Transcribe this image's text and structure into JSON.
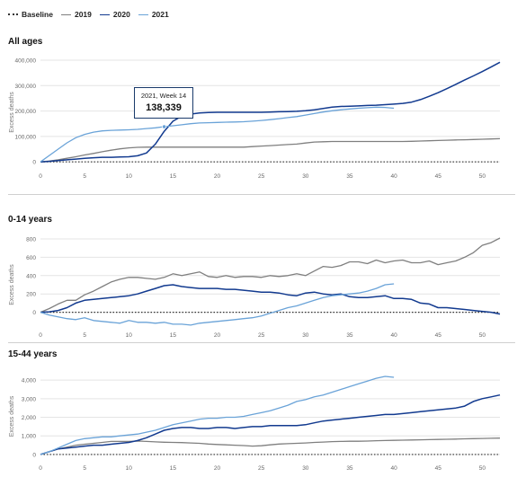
{
  "legend": {
    "items": [
      {
        "label": "Baseline",
        "color": "#333333",
        "style": "dotted"
      },
      {
        "label": "2019",
        "color": "#7f7f7f",
        "style": "solid"
      },
      {
        "label": "2020",
        "color": "#123a8f",
        "style": "solid"
      },
      {
        "label": "2021",
        "color": "#6aa3d8",
        "style": "solid"
      }
    ]
  },
  "colors": {
    "baseline": "#333333",
    "y2019": "#7f7f7f",
    "y2020": "#123a8f",
    "y2021": "#6aa3d8",
    "grid": "#e4e4e4"
  },
  "tooltip": {
    "title": "2021, Week 14",
    "value": "138,339"
  },
  "chart_data": [
    {
      "type": "line",
      "title": "All ages",
      "ylabel": "Excess deaths",
      "xlabel": "",
      "xlim": [
        0,
        52
      ],
      "ylim": [
        -10000,
        400000
      ],
      "xticks": [
        "0",
        "5",
        "10",
        "15",
        "20",
        "25",
        "30",
        "35",
        "40",
        "45",
        "50"
      ],
      "yticks": [
        "0",
        "100,000",
        "200,000",
        "300,000",
        "400,000"
      ],
      "ytick_values": [
        0,
        100000,
        200000,
        300000,
        400000
      ],
      "grid": true,
      "baseline": 0,
      "series": [
        {
          "name": "2019",
          "x": [
            0,
            1,
            2,
            3,
            4,
            5,
            6,
            7,
            8,
            9,
            10,
            11,
            12,
            13,
            14,
            15,
            16,
            17,
            18,
            19,
            20,
            21,
            22,
            23,
            24,
            25,
            26,
            27,
            28,
            29,
            30,
            31,
            32,
            33,
            34,
            35,
            36,
            37,
            38,
            39,
            40,
            41,
            42,
            43,
            44,
            45,
            46,
            47,
            48,
            49,
            50,
            51,
            52
          ],
          "y": [
            0,
            3000,
            8000,
            14000,
            20000,
            27000,
            33000,
            40000,
            46000,
            51000,
            55000,
            57000,
            58000,
            58000,
            58000,
            58000,
            58000,
            58000,
            58000,
            58000,
            58000,
            58000,
            58000,
            58000,
            60000,
            62000,
            64000,
            66000,
            68000,
            70000,
            74000,
            78000,
            79000,
            80000,
            80000,
            80000,
            80000,
            80000,
            80000,
            80000,
            80000,
            80000,
            81000,
            82000,
            83000,
            84000,
            85000,
            86000,
            87000,
            88000,
            89000,
            90000,
            91000
          ]
        },
        {
          "name": "2020",
          "x": [
            0,
            1,
            2,
            3,
            4,
            5,
            6,
            7,
            8,
            9,
            10,
            11,
            12,
            13,
            14,
            15,
            16,
            17,
            18,
            19,
            20,
            21,
            22,
            23,
            24,
            25,
            26,
            27,
            28,
            29,
            30,
            31,
            32,
            33,
            34,
            35,
            36,
            37,
            38,
            39,
            40,
            41,
            42,
            43,
            44,
            45,
            46,
            47,
            48,
            49,
            50,
            51,
            52
          ],
          "y": [
            0,
            2000,
            5000,
            8000,
            11000,
            14000,
            16000,
            18000,
            18000,
            19000,
            20000,
            24000,
            35000,
            70000,
            120000,
            160000,
            180000,
            188000,
            192000,
            194000,
            195000,
            195000,
            195000,
            195000,
            195000,
            195000,
            196000,
            197000,
            198000,
            199000,
            201000,
            205000,
            210000,
            215000,
            218000,
            219000,
            220000,
            222000,
            223000,
            225000,
            227000,
            230000,
            235000,
            245000,
            258000,
            272000,
            288000,
            305000,
            322000,
            338000,
            355000,
            373000,
            392000
          ]
        },
        {
          "name": "2021",
          "x": [
            0,
            1,
            2,
            3,
            4,
            5,
            6,
            7,
            8,
            9,
            10,
            11,
            12,
            13,
            14,
            15,
            16,
            17,
            18,
            19,
            20,
            21,
            22,
            23,
            24,
            25,
            26,
            27,
            28,
            29,
            30,
            31,
            32,
            33,
            34,
            35,
            36,
            37,
            38,
            39,
            40
          ],
          "y": [
            0,
            25000,
            50000,
            75000,
            95000,
            108000,
            117000,
            122000,
            124000,
            125000,
            126000,
            128000,
            131000,
            134000,
            138339,
            142000,
            146000,
            150000,
            153000,
            154000,
            155000,
            156000,
            157000,
            158000,
            160000,
            163000,
            166000,
            170000,
            174000,
            178000,
            184000,
            190000,
            196000,
            201000,
            205000,
            208000,
            211000,
            213000,
            215000,
            214000,
            211000
          ]
        }
      ]
    },
    {
      "type": "line",
      "title": "0-14 years",
      "ylabel": "Excess deaths",
      "xlabel": "",
      "xlim": [
        0,
        52
      ],
      "ylim": [
        -200,
        800
      ],
      "xticks": [
        "0",
        "5",
        "10",
        "15",
        "20",
        "25",
        "30",
        "35",
        "40",
        "45",
        "50"
      ],
      "yticks": [
        "0",
        "200",
        "400",
        "600",
        "800"
      ],
      "ytick_values": [
        0,
        200,
        400,
        600,
        800
      ],
      "grid": true,
      "baseline": 0,
      "series": [
        {
          "name": "2019",
          "x": [
            0,
            1,
            2,
            3,
            4,
            5,
            6,
            7,
            8,
            9,
            10,
            11,
            12,
            13,
            14,
            15,
            16,
            17,
            18,
            19,
            20,
            21,
            22,
            23,
            24,
            25,
            26,
            27,
            28,
            29,
            30,
            31,
            32,
            33,
            34,
            35,
            36,
            37,
            38,
            39,
            40,
            41,
            42,
            43,
            44,
            45,
            46,
            47,
            48,
            49,
            50,
            51,
            52
          ],
          "y": [
            0,
            40,
            90,
            130,
            130,
            190,
            230,
            280,
            330,
            360,
            380,
            380,
            370,
            360,
            380,
            420,
            400,
            420,
            440,
            390,
            380,
            400,
            380,
            390,
            390,
            380,
            400,
            390,
            400,
            420,
            400,
            450,
            500,
            490,
            510,
            550,
            550,
            530,
            570,
            540,
            560,
            570,
            540,
            540,
            560,
            520,
            540,
            560,
            600,
            650,
            730,
            760,
            810
          ]
        },
        {
          "name": "2020",
          "x": [
            0,
            1,
            2,
            3,
            4,
            5,
            6,
            7,
            8,
            9,
            10,
            11,
            12,
            13,
            14,
            15,
            16,
            17,
            18,
            19,
            20,
            21,
            22,
            23,
            24,
            25,
            26,
            27,
            28,
            29,
            30,
            31,
            32,
            33,
            34,
            35,
            36,
            37,
            38,
            39,
            40,
            41,
            42,
            43,
            44,
            45,
            46,
            47,
            48,
            49,
            50,
            51,
            52
          ],
          "y": [
            0,
            5,
            20,
            50,
            100,
            130,
            140,
            150,
            160,
            170,
            180,
            200,
            230,
            260,
            290,
            300,
            280,
            270,
            260,
            260,
            260,
            250,
            250,
            240,
            230,
            220,
            220,
            210,
            190,
            180,
            210,
            220,
            200,
            190,
            200,
            170,
            160,
            160,
            170,
            180,
            150,
            150,
            140,
            100,
            90,
            50,
            50,
            40,
            30,
            20,
            10,
            0,
            -20
          ]
        },
        {
          "name": "2021",
          "x": [
            0,
            1,
            2,
            3,
            4,
            5,
            6,
            7,
            8,
            9,
            10,
            11,
            12,
            13,
            14,
            15,
            16,
            17,
            18,
            19,
            20,
            21,
            22,
            23,
            24,
            25,
            26,
            27,
            28,
            29,
            30,
            31,
            32,
            33,
            34,
            35,
            36,
            37,
            38,
            39,
            40
          ],
          "y": [
            0,
            -30,
            -50,
            -70,
            -80,
            -60,
            -90,
            -100,
            -110,
            -120,
            -90,
            -110,
            -110,
            -120,
            -110,
            -130,
            -130,
            -140,
            -120,
            -110,
            -100,
            -90,
            -80,
            -70,
            -60,
            -40,
            -10,
            20,
            50,
            70,
            100,
            130,
            160,
            180,
            190,
            200,
            210,
            230,
            260,
            300,
            310
          ]
        }
      ]
    },
    {
      "type": "line",
      "title": "15-44 years",
      "ylabel": "Excess deaths",
      "xlabel": "",
      "xlim": [
        0,
        52
      ],
      "ylim": [
        -100,
        4200
      ],
      "xticks": [
        "0",
        "5",
        "10",
        "15",
        "20",
        "25",
        "30",
        "35",
        "40",
        "45",
        "50"
      ],
      "yticks": [
        "0",
        "1,000",
        "2,000",
        "3,000",
        "4,000"
      ],
      "ytick_values": [
        0,
        1000,
        2000,
        3000,
        4000
      ],
      "grid": true,
      "baseline": 0,
      "series": [
        {
          "name": "2019",
          "x": [
            0,
            1,
            2,
            3,
            4,
            5,
            6,
            7,
            8,
            9,
            10,
            11,
            12,
            13,
            14,
            15,
            16,
            17,
            18,
            19,
            20,
            21,
            22,
            23,
            24,
            25,
            26,
            27,
            28,
            29,
            30,
            31,
            32,
            33,
            34,
            35,
            36,
            37,
            38,
            39,
            40,
            41,
            42,
            43,
            44,
            45,
            46,
            47,
            48,
            49,
            50,
            51,
            52
          ],
          "y": [
            0,
            150,
            300,
            400,
            500,
            550,
            600,
            650,
            700,
            700,
            700,
            720,
            700,
            680,
            660,
            650,
            640,
            620,
            600,
            560,
            540,
            520,
            500,
            480,
            450,
            470,
            520,
            560,
            580,
            600,
            620,
            650,
            670,
            690,
            700,
            710,
            710,
            720,
            740,
            750,
            760,
            770,
            780,
            790,
            800,
            810,
            820,
            830,
            840,
            850,
            860,
            870,
            880
          ]
        },
        {
          "name": "2020",
          "x": [
            0,
            1,
            2,
            3,
            4,
            5,
            6,
            7,
            8,
            9,
            10,
            11,
            12,
            13,
            14,
            15,
            16,
            17,
            18,
            19,
            20,
            21,
            22,
            23,
            24,
            25,
            26,
            27,
            28,
            29,
            30,
            31,
            32,
            33,
            34,
            35,
            36,
            37,
            38,
            39,
            40,
            41,
            42,
            43,
            44,
            45,
            46,
            47,
            48,
            49,
            50,
            51,
            52
          ],
          "y": [
            0,
            150,
            300,
            350,
            400,
            450,
            500,
            500,
            550,
            600,
            650,
            750,
            900,
            1100,
            1300,
            1400,
            1450,
            1450,
            1400,
            1400,
            1450,
            1450,
            1400,
            1450,
            1500,
            1500,
            1550,
            1550,
            1550,
            1550,
            1600,
            1700,
            1800,
            1850,
            1900,
            1950,
            2000,
            2050,
            2100,
            2150,
            2150,
            2200,
            2250,
            2300,
            2350,
            2400,
            2450,
            2500,
            2600,
            2850,
            3000,
            3100,
            3200
          ]
        },
        {
          "name": "2021",
          "x": [
            0,
            1,
            2,
            3,
            4,
            5,
            6,
            7,
            8,
            9,
            10,
            11,
            12,
            13,
            14,
            15,
            16,
            17,
            18,
            19,
            20,
            21,
            22,
            23,
            24,
            25,
            26,
            27,
            28,
            29,
            30,
            31,
            32,
            33,
            34,
            35,
            36,
            37,
            38,
            39,
            40
          ],
          "y": [
            0,
            150,
            350,
            550,
            750,
            850,
            900,
            950,
            950,
            1000,
            1050,
            1100,
            1200,
            1300,
            1450,
            1600,
            1700,
            1800,
            1900,
            1950,
            1950,
            2000,
            2000,
            2050,
            2150,
            2250,
            2350,
            2500,
            2650,
            2850,
            2950,
            3100,
            3200,
            3350,
            3500,
            3650,
            3800,
            3950,
            4100,
            4200,
            4150
          ]
        }
      ]
    }
  ]
}
